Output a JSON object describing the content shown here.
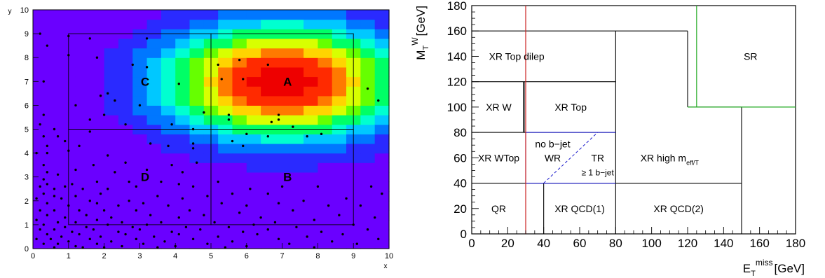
{
  "chart_data": [
    {
      "type": "heatmap",
      "xlabel": "x",
      "ylabel": "y",
      "xlim": [
        0,
        10
      ],
      "ylim": [
        0,
        10
      ],
      "x_ticks": [
        "0",
        "1",
        "2",
        "3",
        "4",
        "5",
        "6",
        "7",
        "8",
        "9",
        "10"
      ],
      "y_ticks": [
        "0",
        "1",
        "2",
        "3",
        "4",
        "5",
        "6",
        "7",
        "8",
        "9",
        "10"
      ],
      "heatmap": {
        "x_bins": 25,
        "y_bins": 25,
        "peak": [
          7.0,
          7.0
        ],
        "sigma_x": 2.3,
        "sigma_y": 1.65,
        "colorscale": [
          "#6a00ff",
          "#2a2aff",
          "#0077ff",
          "#00c8ff",
          "#00ffd0",
          "#00ff66",
          "#66ff00",
          "#d8ff00",
          "#ffd400",
          "#ff7a00",
          "#ff2a00",
          "#ee0000"
        ]
      },
      "regions": [
        {
          "label": "A",
          "x": [
            5,
            9
          ],
          "y": [
            5,
            9
          ],
          "label_at": [
            7.15,
            7.0
          ]
        },
        {
          "label": "B",
          "x": [
            5,
            9
          ],
          "y": [
            1,
            5
          ],
          "label_at": [
            7.15,
            3.0
          ]
        },
        {
          "label": "C",
          "x": [
            1,
            5
          ],
          "y": [
            5,
            9
          ],
          "label_at": [
            3.15,
            7.0
          ]
        },
        {
          "label": "D",
          "x": [
            1,
            5
          ],
          "y": [
            1,
            5
          ],
          "label_at": [
            3.15,
            3.0
          ]
        }
      ],
      "scatter_points": [
        [
          0.2,
          9.0
        ],
        [
          1.0,
          8.9
        ],
        [
          1.6,
          8.8
        ],
        [
          3.2,
          8.8
        ],
        [
          0.4,
          8.5
        ],
        [
          1.0,
          8.1
        ],
        [
          1.8,
          8.0
        ],
        [
          2.8,
          7.7
        ],
        [
          3.2,
          7.6
        ],
        [
          5.2,
          7.7
        ],
        [
          5.8,
          7.9
        ],
        [
          6.6,
          7.7
        ],
        [
          0.3,
          7.0
        ],
        [
          5.3,
          7.1
        ],
        [
          5.9,
          7.1
        ],
        [
          4.1,
          6.9
        ],
        [
          2.1,
          6.5
        ],
        [
          1.9,
          6.4
        ],
        [
          2.3,
          6.2
        ],
        [
          9.4,
          6.7
        ],
        [
          1.2,
          6.0
        ],
        [
          3.0,
          6.0
        ],
        [
          9.7,
          6.2
        ],
        [
          4.8,
          5.7
        ],
        [
          5.5,
          5.6
        ],
        [
          6.9,
          5.6
        ],
        [
          2.0,
          5.6
        ],
        [
          1.6,
          5.4
        ],
        [
          0.3,
          5.6
        ],
        [
          6.9,
          5.4
        ],
        [
          5.5,
          5.4
        ],
        [
          6.7,
          5.3
        ],
        [
          0.2,
          5.2
        ],
        [
          2.6,
          5.2
        ],
        [
          3.9,
          5.2
        ],
        [
          4.5,
          5.0
        ],
        [
          7.3,
          5.1
        ],
        [
          0.6,
          5.0
        ],
        [
          1.6,
          4.9
        ],
        [
          0.7,
          4.7
        ],
        [
          6.0,
          4.8
        ],
        [
          6.6,
          4.7
        ],
        [
          7.7,
          4.7
        ],
        [
          0.3,
          4.7
        ],
        [
          8.1,
          4.8
        ],
        [
          0.9,
          4.5
        ],
        [
          0.4,
          4.3
        ],
        [
          1.3,
          4.3
        ],
        [
          3.3,
          4.4
        ],
        [
          4.5,
          4.4
        ],
        [
          5.6,
          4.5
        ],
        [
          5.9,
          4.3
        ],
        [
          3.8,
          4.3
        ],
        [
          4.5,
          4.2
        ],
        [
          0.1,
          4.0
        ],
        [
          0.4,
          4.0
        ],
        [
          1.0,
          4.1
        ],
        [
          2.1,
          3.9
        ],
        [
          0.3,
          3.5
        ],
        [
          2.6,
          3.6
        ],
        [
          1.7,
          3.5
        ],
        [
          3.9,
          3.5
        ],
        [
          4.6,
          3.6
        ],
        [
          3.2,
          3.3
        ],
        [
          4.2,
          3.2
        ],
        [
          1.2,
          3.3
        ],
        [
          0.4,
          3.2
        ],
        [
          0.7,
          3.1
        ],
        [
          2.3,
          3.2
        ],
        [
          0.3,
          2.9
        ],
        [
          1.8,
          2.8
        ],
        [
          2.7,
          2.8
        ],
        [
          3.6,
          2.8
        ],
        [
          5.2,
          2.8
        ],
        [
          1.1,
          2.7
        ],
        [
          2.9,
          2.6
        ],
        [
          4.1,
          2.7
        ],
        [
          0.2,
          2.6
        ],
        [
          0.4,
          2.7
        ],
        [
          0.6,
          2.5
        ],
        [
          0.9,
          2.6
        ],
        [
          1.4,
          2.5
        ],
        [
          2.1,
          2.5
        ],
        [
          4.5,
          2.6
        ],
        [
          6.1,
          2.5
        ],
        [
          7.0,
          2.6
        ],
        [
          8.0,
          2.6
        ],
        [
          9.5,
          2.6
        ],
        [
          0.3,
          2.3
        ],
        [
          0.6,
          2.2
        ],
        [
          1.2,
          2.2
        ],
        [
          1.9,
          2.3
        ],
        [
          3.5,
          2.2
        ],
        [
          4.9,
          2.2
        ],
        [
          5.6,
          2.3
        ],
        [
          6.6,
          2.3
        ],
        [
          9.8,
          2.3
        ],
        [
          0.1,
          2.1
        ],
        [
          0.8,
          2.1
        ],
        [
          1.6,
          2.0
        ],
        [
          2.7,
          2.0
        ],
        [
          4.2,
          2.1
        ],
        [
          7.6,
          2.0
        ],
        [
          8.8,
          2.1
        ],
        [
          0.4,
          1.9
        ],
        [
          1.0,
          1.8
        ],
        [
          1.8,
          1.9
        ],
        [
          2.4,
          1.8
        ],
        [
          3.1,
          1.9
        ],
        [
          3.8,
          1.8
        ],
        [
          5.3,
          1.9
        ],
        [
          6.0,
          1.8
        ],
        [
          6.9,
          1.9
        ],
        [
          8.3,
          1.8
        ],
        [
          9.2,
          1.8
        ],
        [
          0.2,
          1.6
        ],
        [
          0.6,
          1.6
        ],
        [
          1.3,
          1.6
        ],
        [
          2.0,
          1.6
        ],
        [
          2.9,
          1.6
        ],
        [
          4.4,
          1.6
        ],
        [
          5.8,
          1.5
        ],
        [
          7.3,
          1.6
        ],
        [
          0.4,
          1.4
        ],
        [
          0.9,
          1.3
        ],
        [
          1.5,
          1.4
        ],
        [
          2.2,
          1.3
        ],
        [
          3.3,
          1.4
        ],
        [
          4.1,
          1.3
        ],
        [
          4.8,
          1.4
        ],
        [
          6.4,
          1.3
        ],
        [
          8.6,
          1.4
        ],
        [
          9.6,
          1.3
        ],
        [
          0.1,
          1.2
        ],
        [
          0.7,
          1.1
        ],
        [
          1.2,
          1.1
        ],
        [
          1.8,
          1.2
        ],
        [
          2.5,
          1.1
        ],
        [
          3.6,
          1.1
        ],
        [
          5.1,
          1.1
        ],
        [
          6.8,
          1.1
        ],
        [
          7.9,
          1.2
        ],
        [
          0.3,
          1.0
        ],
        [
          0.9,
          0.9
        ],
        [
          1.5,
          0.9
        ],
        [
          2.1,
          1.0
        ],
        [
          2.8,
          0.9
        ],
        [
          3.2,
          1.0
        ],
        [
          4.3,
          0.9
        ],
        [
          5.5,
          0.9
        ],
        [
          6.2,
          1.0
        ],
        [
          7.4,
          0.9
        ],
        [
          9.0,
          1.0
        ],
        [
          0.2,
          0.8
        ],
        [
          0.6,
          0.8
        ],
        [
          1.1,
          0.7
        ],
        [
          1.7,
          0.8
        ],
        [
          2.4,
          0.7
        ],
        [
          3.0,
          0.8
        ],
        [
          3.9,
          0.7
        ],
        [
          4.7,
          0.8
        ],
        [
          5.9,
          0.7
        ],
        [
          6.6,
          0.8
        ],
        [
          8.1,
          0.7
        ],
        [
          9.4,
          0.8
        ],
        [
          0.4,
          0.6
        ],
        [
          0.8,
          0.5
        ],
        [
          1.3,
          0.6
        ],
        [
          1.9,
          0.5
        ],
        [
          2.6,
          0.6
        ],
        [
          3.4,
          0.5
        ],
        [
          4.1,
          0.6
        ],
        [
          5.2,
          0.5
        ],
        [
          6.3,
          0.6
        ],
        [
          7.7,
          0.5
        ],
        [
          8.7,
          0.6
        ],
        [
          0.1,
          0.4
        ],
        [
          0.5,
          0.4
        ],
        [
          1.0,
          0.3
        ],
        [
          1.6,
          0.4
        ],
        [
          2.2,
          0.3
        ],
        [
          2.9,
          0.4
        ],
        [
          3.7,
          0.3
        ],
        [
          4.5,
          0.4
        ],
        [
          5.6,
          0.3
        ],
        [
          6.9,
          0.4
        ],
        [
          8.4,
          0.3
        ],
        [
          9.7,
          0.4
        ],
        [
          0.3,
          0.2
        ],
        [
          0.7,
          0.2
        ],
        [
          1.2,
          0.1
        ],
        [
          1.8,
          0.2
        ],
        [
          2.5,
          0.1
        ],
        [
          3.1,
          0.2
        ],
        [
          4.0,
          0.1
        ],
        [
          4.9,
          0.2
        ],
        [
          6.0,
          0.1
        ],
        [
          7.2,
          0.2
        ],
        [
          9.1,
          0.2
        ],
        [
          0.6,
          0.05
        ],
        [
          1.4,
          0.05
        ],
        [
          2.0,
          0.05
        ],
        [
          3.5,
          0.05
        ],
        [
          5.4,
          0.05
        ],
        [
          7.9,
          0.05
        ]
      ]
    },
    {
      "type": "diagram",
      "xlabel_base": "E",
      "xlabel_sub": "T",
      "xlabel_sup": "miss",
      "xlabel_unit": "[GeV]",
      "ylabel_base": "M",
      "ylabel_sub": "T",
      "ylabel_sup": "W",
      "ylabel_unit": "[GeV]",
      "xlim": [
        0,
        180
      ],
      "ylim": [
        0,
        180
      ],
      "x_ticks": [
        "0",
        "20",
        "40",
        "60",
        "80",
        "100",
        "120",
        "140",
        "160",
        "180"
      ],
      "y_ticks": [
        "0",
        "20",
        "40",
        "60",
        "80",
        "100",
        "120",
        "140",
        "160",
        "180"
      ],
      "red_line_x": 30,
      "regions": [
        {
          "label": "XR Top dilep",
          "x": 25,
          "y": 140
        },
        {
          "label": "XR W",
          "x": 15,
          "y": 100
        },
        {
          "label": "XR Top",
          "x": 55,
          "y": 100
        },
        {
          "label": "XR WTop",
          "x": 15,
          "y": 60
        },
        {
          "label": "no b−jet",
          "x": 45,
          "y": 71,
          "color": "#1a1acc"
        },
        {
          "label": "WR",
          "x": 45,
          "y": 60,
          "color": "#1a1acc"
        },
        {
          "label": "TR",
          "x": 70,
          "y": 60,
          "color": "#1a1acc"
        },
        {
          "label": "≥ 1 b−jet",
          "x": 70,
          "y": 49,
          "color": "#1a1acc",
          "small": true
        },
        {
          "label": "XR high m",
          "sub": "eff/T",
          "x": 110,
          "y": 60
        },
        {
          "label": "QR",
          "x": 15,
          "y": 20,
          "color": "#cc2222"
        },
        {
          "label": "XR QCD(1)",
          "x": 60,
          "y": 20
        },
        {
          "label": "XR QCD(2)",
          "x": 115,
          "y": 20
        },
        {
          "label": "SR",
          "x": 155,
          "y": 140,
          "color": "#22aa22"
        }
      ]
    }
  ]
}
